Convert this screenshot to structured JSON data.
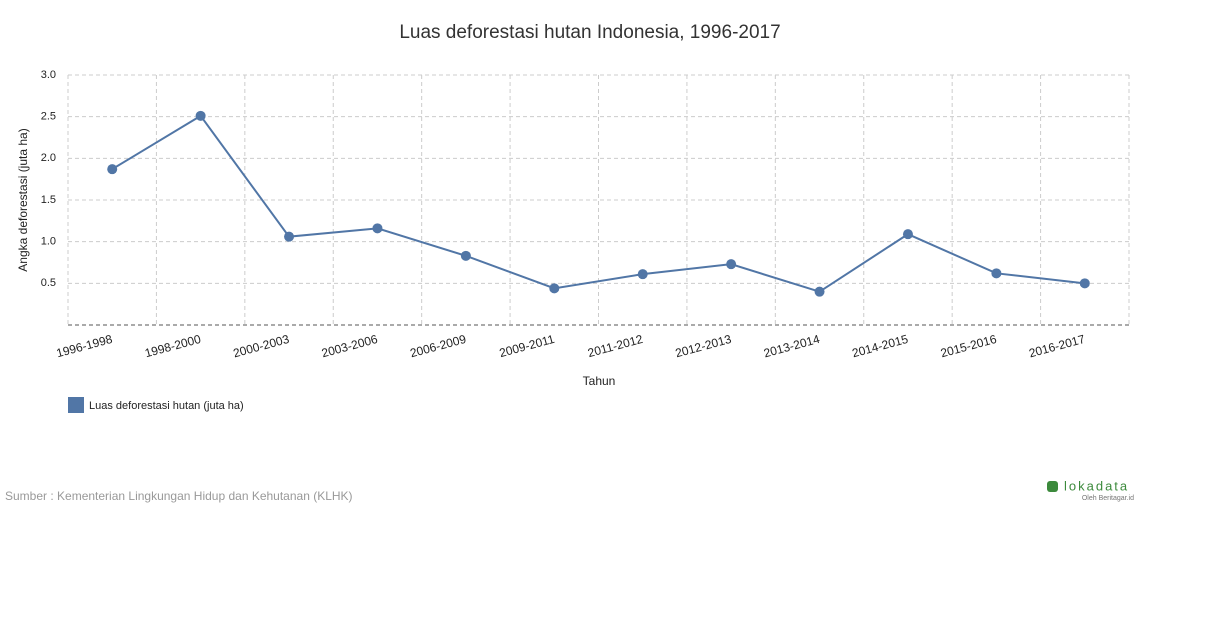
{
  "chart_data": {
    "type": "line",
    "title": "Luas deforestasi hutan Indonesia, 1996-2017",
    "x_label": "Tahun",
    "y_label": "Angka deforestasi (juta ha)",
    "categories": [
      "1996-1998",
      "1998-2000",
      "2000-2003",
      "2003-2006",
      "2006-2009",
      "2009-2011",
      "2011-2012",
      "2012-2013",
      "2013-2014",
      "2014-2015",
      "2015-2016",
      "2016-2017"
    ],
    "series": [
      {
        "name": "Luas deforestasi hutan (juta ha)",
        "color": "#5176a6",
        "values": [
          1.87,
          2.51,
          1.06,
          1.16,
          0.83,
          0.44,
          0.61,
          0.73,
          0.4,
          1.09,
          0.62,
          0.5
        ]
      }
    ],
    "ylim": [
      0,
      3
    ],
    "yticks": [
      0.5,
      {
        "value": 1,
        "label": "1.0"
      },
      1.5,
      {
        "value": 2,
        "label": "2.0"
      },
      2.5,
      {
        "value": 3,
        "label": "3.0"
      }
    ],
    "grid": true,
    "legend": "bottom-left",
    "source": "Sumber : Kementerian Lingkungan Hidup dan Kehutanan (KLHK)",
    "brand": "lokadata",
    "brand_sub": "Oleh Beritagar.id"
  }
}
